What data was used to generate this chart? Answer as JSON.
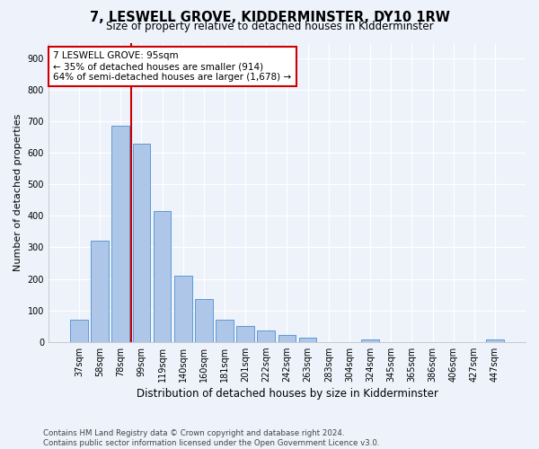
{
  "title": "7, LESWELL GROVE, KIDDERMINSTER, DY10 1RW",
  "subtitle": "Size of property relative to detached houses in Kidderminster",
  "xlabel": "Distribution of detached houses by size in Kidderminster",
  "ylabel": "Number of detached properties",
  "categories": [
    "37sqm",
    "58sqm",
    "78sqm",
    "99sqm",
    "119sqm",
    "140sqm",
    "160sqm",
    "181sqm",
    "201sqm",
    "222sqm",
    "242sqm",
    "263sqm",
    "283sqm",
    "304sqm",
    "324sqm",
    "345sqm",
    "365sqm",
    "386sqm",
    "406sqm",
    "427sqm",
    "447sqm"
  ],
  "values": [
    70,
    320,
    685,
    630,
    415,
    210,
    137,
    70,
    50,
    35,
    22,
    12,
    0,
    0,
    8,
    0,
    0,
    0,
    0,
    0,
    8
  ],
  "bar_color": "#aec6e8",
  "bar_edge_color": "#5b9bd5",
  "property_line_index": 3,
  "property_line_color": "#cc0000",
  "annotation_text": "7 LESWELL GROVE: 95sqm\n← 35% of detached houses are smaller (914)\n64% of semi-detached houses are larger (1,678) →",
  "annotation_box_color": "#ffffff",
  "annotation_box_edge_color": "#cc0000",
  "ylim": [
    0,
    950
  ],
  "yticks": [
    0,
    100,
    200,
    300,
    400,
    500,
    600,
    700,
    800,
    900
  ],
  "footnote": "Contains HM Land Registry data © Crown copyright and database right 2024.\nContains public sector information licensed under the Open Government Licence v3.0.",
  "bg_color": "#edf2fb",
  "plot_bg_color": "#edf2fb",
  "title_fontsize": 10.5,
  "subtitle_fontsize": 8.5,
  "axis_label_fontsize": 8,
  "tick_fontsize": 7,
  "footnote_fontsize": 6.2,
  "annotation_fontsize": 7.5
}
